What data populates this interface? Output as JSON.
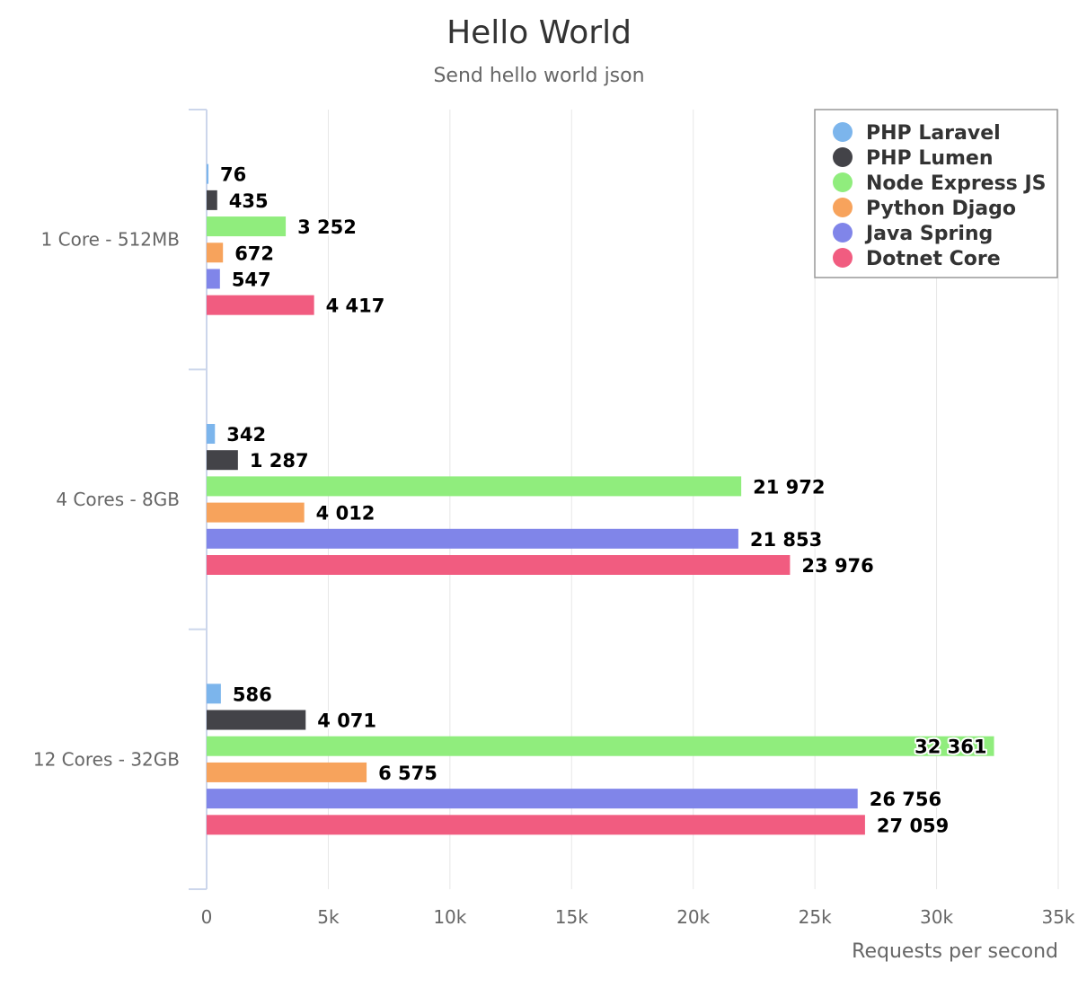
{
  "chart_data": {
    "type": "bar",
    "orientation": "horizontal",
    "title": "Hello World",
    "subtitle": "Send hello world json",
    "xlabel": "Requests per second",
    "ylabel": "",
    "xlim": [
      0,
      35000
    ],
    "x_ticks": [
      0,
      5000,
      10000,
      15000,
      20000,
      25000,
      30000,
      35000
    ],
    "x_tick_labels": [
      "0",
      "5k",
      "10k",
      "15k",
      "20k",
      "25k",
      "30k",
      "35k"
    ],
    "grid": true,
    "legend_position": "top-right",
    "categories": [
      "1 Core - 512MB",
      "4 Cores - 8GB",
      "12 Cores - 32GB"
    ],
    "series": [
      {
        "name": "PHP Laravel",
        "color": "#7cb5ec",
        "values": [
          76,
          342,
          586
        ],
        "labels": [
          "76",
          "342",
          "586"
        ]
      },
      {
        "name": "PHP Lumen",
        "color": "#434348",
        "values": [
          435,
          1287,
          4071
        ],
        "labels": [
          "435",
          "1 287",
          "4 071"
        ]
      },
      {
        "name": "Node Express JS",
        "color": "#90ed7d",
        "values": [
          3252,
          21972,
          32361
        ],
        "labels": [
          "3 252",
          "21 972",
          "32 361"
        ]
      },
      {
        "name": "Python Djago",
        "color": "#f7a35c",
        "values": [
          672,
          4012,
          6575
        ],
        "labels": [
          "672",
          "4 012",
          "6 575"
        ]
      },
      {
        "name": "Java Spring",
        "color": "#8085e9",
        "values": [
          547,
          21853,
          26756
        ],
        "labels": [
          "547",
          "21 853",
          "26 756"
        ]
      },
      {
        "name": "Dotnet Core",
        "color": "#f15c80",
        "values": [
          4417,
          23976,
          27059
        ],
        "labels": [
          "4 417",
          "23 976",
          "27 059"
        ]
      }
    ]
  }
}
